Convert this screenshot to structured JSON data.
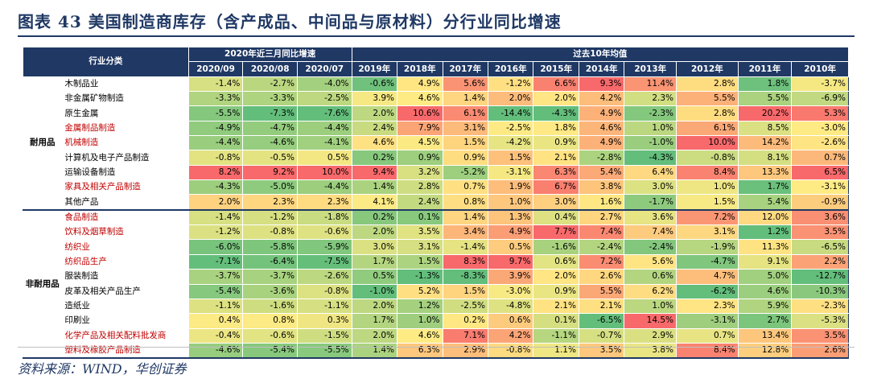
{
  "title": "图表 43    美国制造商库存（含产成品、中间品与原材料）分行业同比增速",
  "source": "资料来源：WIND，华创证券",
  "chart_data": {
    "type": "table",
    "header": {
      "category": "行业分类",
      "group_recent": "2020年近三月同比增速",
      "group_avg": "过去10年均值",
      "columns": [
        "2020/09",
        "2020/08",
        "2020/07",
        "2019年",
        "2018年",
        "2017年",
        "2016年",
        "2015年",
        "2014年",
        "2013年",
        "2012年",
        "2011年",
        "2010年"
      ]
    },
    "groups": [
      {
        "name": "耐用品",
        "rows": [
          {
            "name": "木制品业",
            "red": false,
            "values": [
              "-1.4%",
              "-2.7%",
              "-4.0%",
              "-0.6%",
              "4.9%",
              "5.6%",
              "-1.2%",
              "6.6%",
              "9.3%",
              "11.4%",
              "2.8%",
              "1.8%",
              "-3.7%"
            ]
          },
          {
            "name": "非金属矿物制造",
            "red": false,
            "values": [
              "-3.3%",
              "-3.3%",
              "-2.5%",
              "3.9%",
              "4.6%",
              "1.4%",
              "2.0%",
              "2.0%",
              "4.2%",
              "2.3%",
              "5.5%",
              "5.5%",
              "-6.9%"
            ]
          },
          {
            "name": "原生金属",
            "red": false,
            "values": [
              "-5.5%",
              "-7.3%",
              "-7.6%",
              "2.0%",
              "10.6%",
              "6.1%",
              "-14.4%",
              "-4.3%",
              "4.9%",
              "-2.3%",
              "2.8%",
              "20.2%",
              "5.3%"
            ]
          },
          {
            "name": "金属制品制造",
            "red": true,
            "values": [
              "-4.9%",
              "-4.7%",
              "-4.4%",
              "2.4%",
              "7.9%",
              "3.1%",
              "-2.5%",
              "1.8%",
              "4.6%",
              "1.0%",
              "6.1%",
              "8.5%",
              "-3.0%"
            ]
          },
          {
            "name": "机械制造",
            "red": true,
            "values": [
              "-4.4%",
              "-4.6%",
              "-4.1%",
              "4.6%",
              "4.5%",
              "1.5%",
              "-4.2%",
              "0.9%",
              "4.9%",
              "-1.0%",
              "10.0%",
              "14.2%",
              "-2.6%"
            ]
          },
          {
            "name": "计算机及电子产品制造",
            "red": false,
            "values": [
              "-0.8%",
              "-0.5%",
              "0.5%",
              "0.2%",
              "0.9%",
              "0.9%",
              "1.5%",
              "2.1%",
              "-2.8%",
              "-4.3%",
              "-0.8%",
              "8.1%",
              "0.7%"
            ]
          },
          {
            "name": "运输设备制造",
            "red": false,
            "values": [
              "8.2%",
              "9.2%",
              "10.0%",
              "9.4%",
              "3.2%",
              "-5.2%",
              "-3.1%",
              "6.3%",
              "5.4%",
              "6.4%",
              "8.4%",
              "13.3%",
              "6.5%"
            ]
          },
          {
            "name": "家具及相关产品制造",
            "red": true,
            "values": [
              "-4.3%",
              "-5.0%",
              "-4.4%",
              "1.4%",
              "2.8%",
              "0.7%",
              "1.9%",
              "6.7%",
              "3.8%",
              "3.0%",
              "1.0%",
              "1.7%",
              "-3.1%"
            ]
          },
          {
            "name": "其他产品",
            "red": false,
            "values": [
              "2.0%",
              "2.3%",
              "2.3%",
              "4.1%",
              "2.4%",
              "0.8%",
              "1.0%",
              "3.0%",
              "1.6%",
              "-1.7%",
              "1.5%",
              "5.4%",
              "-0.9%"
            ]
          }
        ]
      },
      {
        "name": "非耐用品",
        "rows": [
          {
            "name": "食品制造",
            "red": true,
            "values": [
              "-1.4%",
              "-1.2%",
              "-1.8%",
              "0.2%",
              "0.1%",
              "1.4%",
              "1.3%",
              "0.4%",
              "2.7%",
              "3.6%",
              "7.2%",
              "12.0%",
              "3.6%"
            ]
          },
          {
            "name": "饮料及烟草制造",
            "red": true,
            "values": [
              "-1.2%",
              "-0.8%",
              "-0.6%",
              "2.0%",
              "3.5%",
              "3.4%",
              "4.9%",
              "7.7%",
              "7.4%",
              "7.4%",
              "3.1%",
              "1.2%",
              "3.5%"
            ]
          },
          {
            "name": "纺织业",
            "red": true,
            "values": [
              "-6.0%",
              "-5.8%",
              "-5.9%",
              "3.0%",
              "3.1%",
              "-1.4%",
              "0.5%",
              "-1.6%",
              "-2.4%",
              "-2.4%",
              "-1.9%",
              "11.3%",
              "-6.5%"
            ]
          },
          {
            "name": "纺织品生产",
            "red": true,
            "values": [
              "-7.1%",
              "-6.4%",
              "-7.5%",
              "1.7%",
              "1.5%",
              "8.3%",
              "9.7%",
              "0.6%",
              "7.2%",
              "5.6%",
              "-4.7%",
              "9.1%",
              "2.2%"
            ]
          },
          {
            "name": "服装制造",
            "red": false,
            "values": [
              "-3.7%",
              "-3.7%",
              "-2.6%",
              "0.5%",
              "-1.3%",
              "-8.3%",
              "3.9%",
              "2.0%",
              "2.6%",
              "0.6%",
              "4.7%",
              "5.0%",
              "-12.7%"
            ]
          },
          {
            "name": "皮革及相关产品生产",
            "red": false,
            "values": [
              "-5.4%",
              "-3.6%",
              "-0.8%",
              "-1.0%",
              "5.2%",
              "1.5%",
              "-3.0%",
              "0.9%",
              "5.5%",
              "6.2%",
              "-6.2%",
              "4.6%",
              "-10.3%"
            ]
          },
          {
            "name": "造纸业",
            "red": false,
            "values": [
              "-1.1%",
              "-1.6%",
              "-1.1%",
              "2.0%",
              "1.2%",
              "-2.5%",
              "-4.8%",
              "2.1%",
              "2.1%",
              "1.0%",
              "2.3%",
              "5.9%",
              "-2.3%"
            ]
          },
          {
            "name": "印刷业",
            "red": false,
            "values": [
              "0.4%",
              "0.8%",
              "0.3%",
              "1.7%",
              "1.0%",
              "0.2%",
              "0.6%",
              "0.1%",
              "-6.5%",
              "14.5%",
              "-3.1%",
              "2.7%",
              "-5.3%"
            ]
          },
          {
            "name": "化学产品及相关配料批发商",
            "red": true,
            "values": [
              "-0.4%",
              "-0.6%",
              "-1.5%",
              "2.0%",
              "4.6%",
              "7.1%",
              "4.2%",
              "-1.1%",
              "-0.7%",
              "2.9%",
              "0.7%",
              "13.4%",
              "3.5%"
            ]
          },
          {
            "name": "塑料及橡胶产品制造",
            "red": true,
            "values": [
              "-4.6%",
              "-5.4%",
              "-5.5%",
              "1.4%",
              "6.3%",
              "2.9%",
              "-0.8%",
              "1.1%",
              "3.5%",
              "3.8%",
              "8.4%",
              "12.8%",
              "2.6%"
            ]
          }
        ]
      }
    ]
  }
}
